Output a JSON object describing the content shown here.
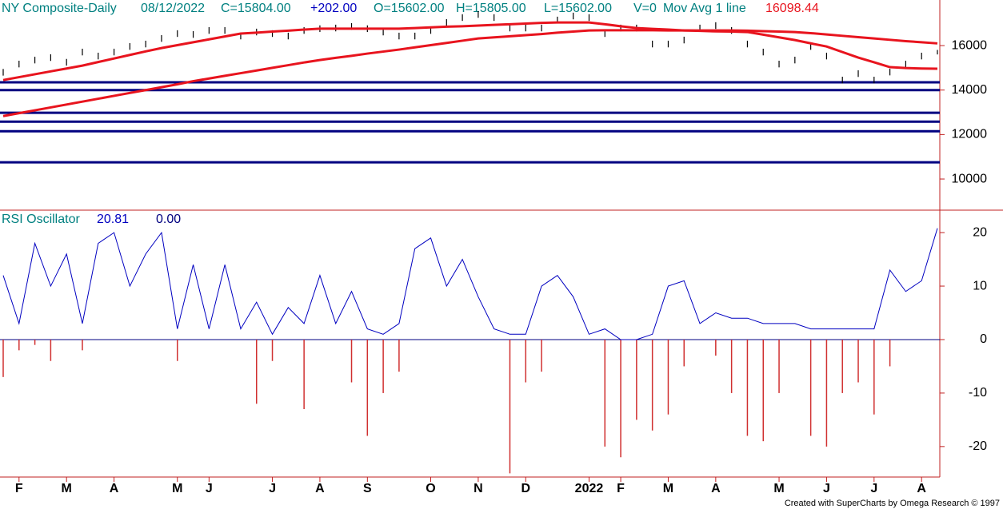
{
  "chart_data": [
    {
      "type": "ohlc",
      "title": "NY Composite-Daily",
      "header": [
        "08/12/2022",
        "C=15804.00",
        "+202.00",
        "O=15602.00",
        "H=15805.00",
        "L=15602.00",
        "V=0",
        "Mov Avg 1 line"
      ],
      "ylim": [
        8600,
        18050
      ],
      "yticks": [
        10000,
        12000,
        14000,
        16000
      ],
      "bar_color": "#000000",
      "high": [
        14950,
        15320,
        15500,
        15610,
        15400,
        15860,
        15680,
        15860,
        16110,
        16220,
        16470,
        16690,
        16650,
        16830,
        16830,
        16580,
        16760,
        16690,
        16580,
        16830,
        16910,
        16940,
        17010,
        16910,
        16760,
        16580,
        16580,
        16830,
        17190,
        17410,
        17550,
        17410,
        16940,
        16940,
        16940,
        17300,
        17480,
        17410,
        16690,
        16940,
        16940,
        16220,
        16220,
        16400,
        16940,
        17050,
        16830,
        16220,
        15860,
        15320,
        15500,
        16110,
        15680,
        14600,
        14890,
        14600,
        14960,
        15320,
        15680,
        15805
      ],
      "low": [
        14650,
        15020,
        15200,
        15310,
        15100,
        15560,
        15380,
        15560,
        15810,
        15920,
        16170,
        16390,
        16350,
        16530,
        16530,
        16280,
        16460,
        16390,
        16280,
        16530,
        16610,
        16640,
        16710,
        16610,
        16460,
        16280,
        16280,
        16530,
        16890,
        17110,
        17250,
        17110,
        16640,
        16640,
        16640,
        17000,
        17180,
        17110,
        16390,
        16640,
        16640,
        15920,
        15920,
        16100,
        16640,
        16750,
        16530,
        15920,
        15560,
        15020,
        15200,
        15810,
        15380,
        14300,
        14590,
        14300,
        14660,
        15020,
        15380,
        15602
      ],
      "moving_averages": [
        {
          "color": "#e8141e",
          "values": [
            12830,
            12960,
            13090,
            13220,
            13350,
            13480,
            13610,
            13740,
            13870,
            14000,
            14130,
            14260,
            14400,
            14520,
            14640,
            14760,
            14880,
            15000,
            15120,
            15240,
            15350,
            15450,
            15540,
            15640,
            15730,
            15820,
            15920,
            16020,
            16120,
            16220,
            16320,
            16370,
            16420,
            16470,
            16520,
            16580,
            16630,
            16680,
            16690,
            16690,
            16690,
            16690,
            16680,
            16680,
            16680,
            16680,
            16680,
            16670,
            16650,
            16630,
            16610,
            16560,
            16500,
            16440,
            16380,
            16320,
            16260,
            16200,
            16150,
            16098.44
          ]
        },
        {
          "color": "#e8141e",
          "values": [
            14450,
            14580,
            14710,
            14840,
            14970,
            15100,
            15260,
            15420,
            15580,
            15740,
            15890,
            16020,
            16150,
            16280,
            16410,
            16540,
            16580,
            16630,
            16670,
            16720,
            16760,
            16760,
            16760,
            16760,
            16760,
            16760,
            16790,
            16820,
            16850,
            16870,
            16900,
            16930,
            16960,
            16990,
            17020,
            17040,
            17040,
            17040,
            16960,
            16870,
            16790,
            16750,
            16720,
            16680,
            16660,
            16640,
            16630,
            16610,
            16490,
            16370,
            16250,
            16100,
            15960,
            15710,
            15460,
            15250,
            15030,
            14990,
            14970,
            14960
          ]
        }
      ],
      "support_lines": [
        14350,
        14000,
        12980,
        12580,
        12150,
        10750
      ],
      "support_color": "#000080"
    },
    {
      "type": "oscillator",
      "title": "RSI Oscillator",
      "zero_line": {
        "value": 0,
        "label": "0.00"
      },
      "ylim": [
        -25.7,
        24.2
      ],
      "yticks": [
        -20,
        -10,
        0,
        10,
        20
      ],
      "categories": [
        null,
        "F",
        null,
        null,
        "M",
        null,
        null,
        "A",
        null,
        null,
        null,
        "M",
        null,
        "J",
        null,
        null,
        null,
        "J",
        null,
        null,
        "A",
        null,
        null,
        "S",
        null,
        null,
        null,
        "O",
        null,
        null,
        "N",
        null,
        null,
        "D",
        null,
        null,
        null,
        "2022",
        null,
        "F",
        null,
        null,
        "M",
        null,
        null,
        "A",
        null,
        null,
        null,
        "M",
        null,
        null,
        "J",
        null,
        null,
        "J",
        null,
        null,
        "A",
        null
      ],
      "line_color": "#0000c0",
      "hist_color": "#d03030",
      "values": [
        12,
        3,
        18,
        10,
        16,
        3,
        18,
        20,
        10,
        16,
        20,
        2,
        14,
        2,
        14,
        2,
        7,
        1,
        6,
        3,
        12,
        3,
        9,
        2,
        1,
        3,
        17,
        19,
        10,
        15,
        8,
        2,
        1,
        1,
        10,
        12,
        8,
        1,
        2,
        0,
        0,
        1,
        10,
        11,
        3,
        5,
        4,
        4,
        3,
        3,
        3,
        2,
        2,
        2,
        2,
        2,
        13,
        9,
        11,
        20.81
      ],
      "histogram": [
        -7,
        -2,
        -1,
        -4,
        0,
        -2,
        0,
        0,
        0,
        0,
        0,
        -4,
        0,
        0,
        0,
        0,
        -12,
        -4,
        0,
        -13,
        0,
        0,
        -8,
        -18,
        -10,
        -6,
        0,
        0,
        0,
        0,
        0,
        0,
        -25,
        -8,
        -6,
        0,
        0,
        0,
        -20,
        -22,
        -15,
        -17,
        -14,
        -5,
        0,
        -3,
        -10,
        -18,
        -19,
        -10,
        0,
        -18,
        -20,
        -10,
        -8,
        -14,
        -5,
        0,
        0,
        0
      ]
    }
  ],
  "footer": "Created with SuperCharts by Omega Research © 1997"
}
